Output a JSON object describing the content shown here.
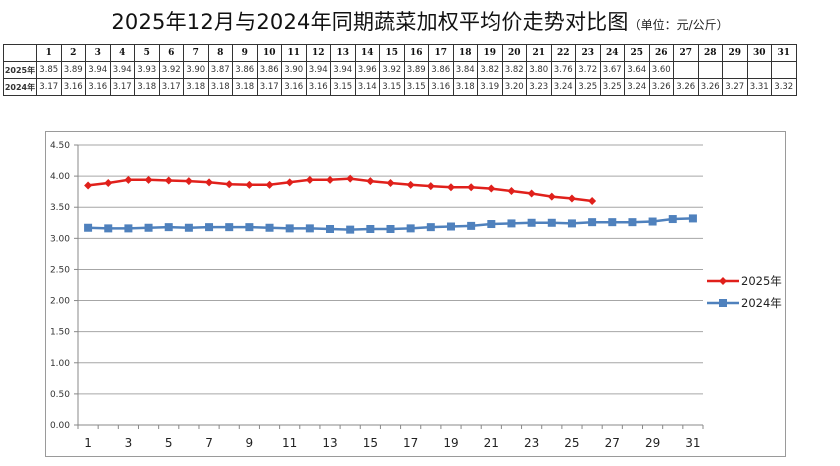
{
  "title": {
    "main": "2025年12月与2024年同期蔬菜加权平均价走势对比图",
    "unit": "（单位：元/公斤）"
  },
  "table": {
    "days": [
      "1",
      "2",
      "3",
      "4",
      "5",
      "6",
      "7",
      "8",
      "9",
      "10",
      "11",
      "12",
      "13",
      "14",
      "15",
      "16",
      "17",
      "18",
      "19",
      "20",
      "21",
      "22",
      "23",
      "24",
      "25",
      "26",
      "27",
      "28",
      "29",
      "30",
      "31"
    ],
    "rows": [
      {
        "label": "2025年",
        "values": [
          "3.85",
          "3.89",
          "3.94",
          "3.94",
          "3.93",
          "3.92",
          "3.90",
          "3.87",
          "3.86",
          "3.86",
          "3.90",
          "3.94",
          "3.94",
          "3.96",
          "3.92",
          "3.89",
          "3.86",
          "3.84",
          "3.82",
          "3.82",
          "3.80",
          "3.76",
          "3.72",
          "3.67",
          "3.64",
          "3.60",
          "",
          "",
          "",
          "",
          ""
        ]
      },
      {
        "label": "2024年",
        "values": [
          "3.17",
          "3.16",
          "3.16",
          "3.17",
          "3.18",
          "3.17",
          "3.18",
          "3.18",
          "3.18",
          "3.17",
          "3.16",
          "3.16",
          "3.15",
          "3.14",
          "3.15",
          "3.15",
          "3.16",
          "3.18",
          "3.19",
          "3.20",
          "3.23",
          "3.24",
          "3.25",
          "3.25",
          "3.24",
          "3.26",
          "3.26",
          "3.26",
          "3.27",
          "3.31",
          "3.32"
        ]
      }
    ]
  },
  "chart_data": {
    "type": "line",
    "title": "2025年12月与2024年同期蔬菜加权平均价走势对比图（单位：元/公斤）",
    "xlabel": "",
    "ylabel": "",
    "x": [
      1,
      2,
      3,
      4,
      5,
      6,
      7,
      8,
      9,
      10,
      11,
      12,
      13,
      14,
      15,
      16,
      17,
      18,
      19,
      20,
      21,
      22,
      23,
      24,
      25,
      26,
      27,
      28,
      29,
      30,
      31
    ],
    "x_tick_labels": [
      "1",
      "3",
      "5",
      "7",
      "9",
      "11",
      "13",
      "15",
      "17",
      "19",
      "21",
      "23",
      "25",
      "27",
      "29",
      "31"
    ],
    "y_tick_labels": [
      "0.00",
      "0.50",
      "1.00",
      "1.50",
      "2.00",
      "2.50",
      "3.00",
      "3.50",
      "4.00",
      "4.50"
    ],
    "ylim": [
      0,
      4.5
    ],
    "grid": true,
    "legend_position": "right",
    "series": [
      {
        "name": "2025年",
        "color": "#e0201b",
        "marker": "diamond",
        "values": [
          3.85,
          3.89,
          3.94,
          3.94,
          3.93,
          3.92,
          3.9,
          3.87,
          3.86,
          3.86,
          3.9,
          3.94,
          3.94,
          3.96,
          3.92,
          3.89,
          3.86,
          3.84,
          3.82,
          3.82,
          3.8,
          3.76,
          3.72,
          3.67,
          3.64,
          3.6
        ]
      },
      {
        "name": "2024年",
        "color": "#4f81bd",
        "marker": "square",
        "values": [
          3.17,
          3.16,
          3.16,
          3.17,
          3.18,
          3.17,
          3.18,
          3.18,
          3.18,
          3.17,
          3.16,
          3.16,
          3.15,
          3.14,
          3.15,
          3.15,
          3.16,
          3.18,
          3.19,
          3.2,
          3.23,
          3.24,
          3.25,
          3.25,
          3.24,
          3.26,
          3.26,
          3.26,
          3.27,
          3.31,
          3.32
        ]
      }
    ]
  }
}
